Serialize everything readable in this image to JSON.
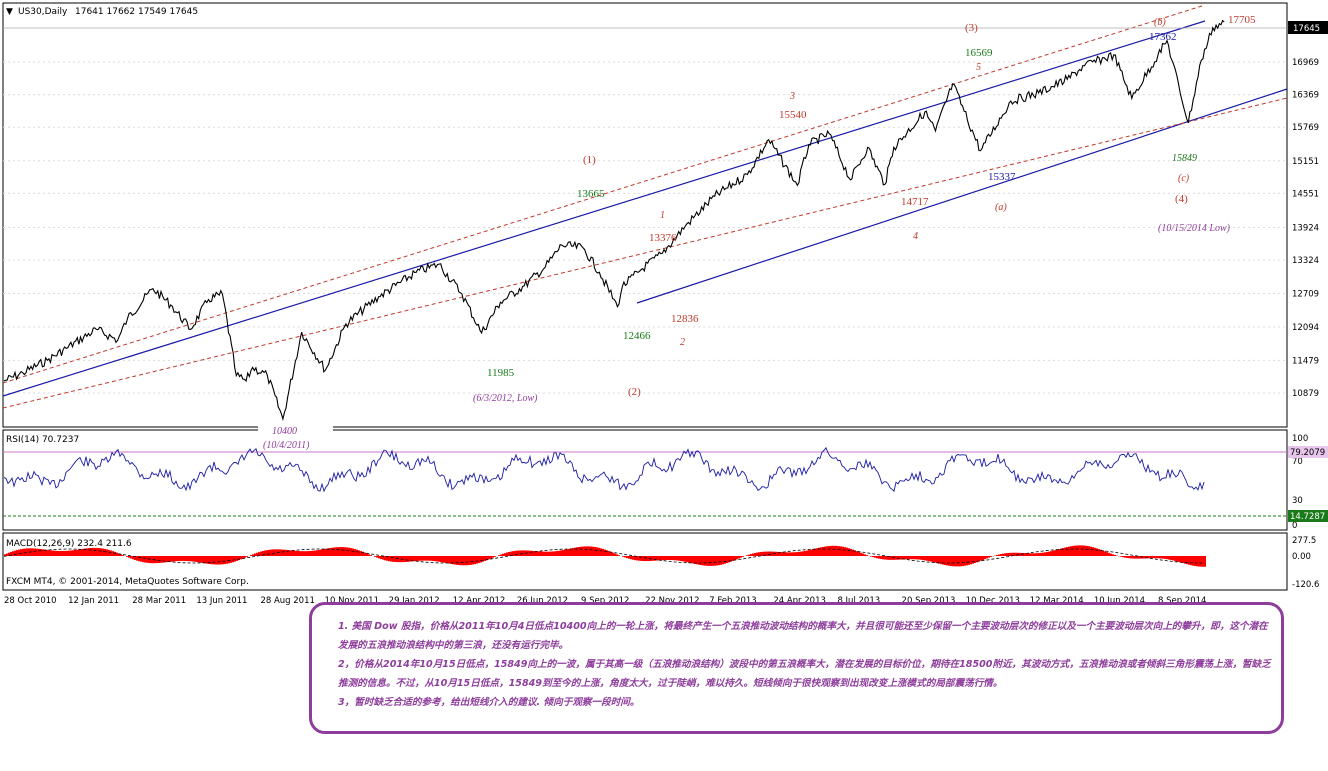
{
  "header": {
    "symbol": "US30,Daily",
    "ohlc": "17641 17662 17549 17645"
  },
  "price_panel": {
    "last_price_badge": "17645",
    "y_ticks": [
      "16969",
      "16369",
      "15769",
      "15151",
      "14551",
      "13924",
      "13324",
      "12709",
      "12094",
      "11479",
      "10879"
    ]
  },
  "rsi_panel": {
    "title": "RSI(14) 70.7237",
    "ticks": [
      "100",
      "70",
      "30",
      "0"
    ],
    "badge_high": "79.2079",
    "badge_low": "14.7287"
  },
  "macd_panel": {
    "title": "MACD(12,26,9) 232.4 211.6",
    "ticks": [
      "277.5",
      "0.00",
      "-120.6"
    ]
  },
  "footer": {
    "copyright": "FXCM MT4, © 2001-2014, MetaQuotes Software Corp."
  },
  "x_axis_labels": [
    "28 Oct 2010",
    "12 Jan 2011",
    "28 Mar 2011",
    "13 Jun 2011",
    "28 Aug 2011",
    "10 Nov 2011",
    "29 Jan 2012",
    "12 Apr 2012",
    "26 Jun 2012",
    "9 Sep 2012",
    "22 Nov 2012",
    "7 Feb 2013",
    "24 Apr 2013",
    "8 Jul 2013",
    "20 Sep 2013",
    "10 Dec 2013",
    "12 Mar 2014",
    "10 Jun 2014",
    "8 Sep 2014"
  ],
  "annotations": {
    "low_10400": "10400",
    "low_10400_date": "(10/4/2011)",
    "p_11985": "11985",
    "p_11985_date": "(6/3/2012, Low)",
    "wave_2_circle": "(2)",
    "p_12466": "12466",
    "wave_2_small": "2",
    "p_12836": "12836",
    "wave_1_circle": "(1)",
    "p_13665": "13665",
    "wave_1_small": "1",
    "p_13376": "13376",
    "wave_3_small": "3",
    "p_15540": "15540",
    "p_14717": "14717",
    "wave_4_small": "4",
    "wave_3_circle": "(3)",
    "p_16569": "16569",
    "wave_5_small": "5",
    "p_15337": "15337",
    "wave_a": "(a)",
    "wave_b": "(b)",
    "p_17362": "17362",
    "p_17705": "17705",
    "p_15849": "15849",
    "wave_c": "(c)",
    "wave_4_circle": "(4)",
    "p_low_2014_date": "(10/15/2014 Low)"
  },
  "notes": [
    "1. 美国 Dow 股指，价格从2011年10月4日低点10400向上的一轮上涨，将最终产生一个五浪推动波动结构的概率大，并且很可能还至少保留一个主要波动层次的修正以及一个主要波动层次向上的攀升，即，这个潜在发展的五浪推动浪结构中的第三浪，还没有运行完毕。",
    "2，价格从2014年10月15日低点，15849向上的一波，属于其高一级（五浪推动浪结构）波段中的第五浪概率大，潜在发展的目标价位，期待在18500附近，其波动方式，五浪推动浪或者倾斜三角形震荡上涨，暂缺乏推测的信息。不过，从10月15日低点，15849到至今的上涨，角度太大，过于陡峭，难以持久。短线倾向于很快观察到出现改变上涨模式的局部震荡行情。",
    "3，暂时缺乏合适的参考，给出短线介入的建议. 倾向于观察一段时间。"
  ],
  "colors": {
    "price_line": "#000000",
    "trend_channel": "#1a1aa8",
    "dashed_channel": "#c0392b",
    "rsi_line": "#1a1aa8",
    "macd_hist": "#ff0000",
    "label_red": "#c0392b",
    "label_green": "#1a7a1a",
    "label_blue": "#1a1aa8",
    "label_purple": "#8e3d9c",
    "note_border": "#8e3d9c"
  },
  "chart_data": {
    "type": "line",
    "title": "US30,Daily",
    "series": [
      {
        "x": [
          "2010-10-28",
          "2010-11-20",
          "2010-12-20",
          "2011-01-12",
          "2011-02-18",
          "2011-03-16",
          "2011-03-28",
          "2011-04-28",
          "2011-05-20",
          "2011-06-13",
          "2011-07-05",
          "2011-07-22",
          "2011-08-08",
          "2011-08-20",
          "2011-08-28",
          "2011-09-15",
          "2011-10-04",
          "2011-10-27",
          "2011-11-25",
          "2011-12-20",
          "2012-01-29",
          "2012-03-15",
          "2012-04-12",
          "2012-05-10",
          "2012-06-03",
          "2012-06-26",
          "2012-07-25",
          "2012-08-20",
          "2012-09-09",
          "2012-10-05",
          "2012-10-25",
          "2012-11-16",
          "2012-11-22",
          "2012-12-15",
          "2013-01-10",
          "2013-02-07",
          "2013-03-15",
          "2013-04-24",
          "2013-05-20",
          "2013-06-24",
          "2013-07-08",
          "2013-08-02",
          "2013-08-28",
          "2013-09-18",
          "2013-10-09",
          "2013-10-20",
          "2013-11-27",
          "2013-12-10",
          "2013-12-31",
          "2014-02-03",
          "2014-03-12",
          "2014-04-15",
          "2014-05-20",
          "2014-06-10",
          "2014-07-16",
          "2014-08-07",
          "2014-09-08",
          "2014-09-19",
          "2014-10-15",
          "2014-10-31",
          "2014-11-14",
          "2014-11-28"
        ],
        "values": [
          11100,
          11250,
          11480,
          11700,
          12050,
          11850,
          12250,
          12800,
          12500,
          12050,
          12600,
          12700,
          11200,
          11100,
          11350,
          11200,
          10400,
          12000,
          11300,
          12150,
          12650,
          13100,
          13250,
          12700,
          11985,
          12550,
          12850,
          13200,
          13600,
          13550,
          13100,
          12466,
          12836,
          13150,
          13450,
          13950,
          14500,
          14900,
          15540,
          14700,
          15450,
          15650,
          14800,
          15400,
          14717,
          15400,
          16050,
          15700,
          16569,
          15337,
          16250,
          16400,
          16650,
          16900,
          17100,
          16300,
          17100,
          17362,
          15849,
          17000,
          17600,
          17705
        ]
      }
    ]
  }
}
